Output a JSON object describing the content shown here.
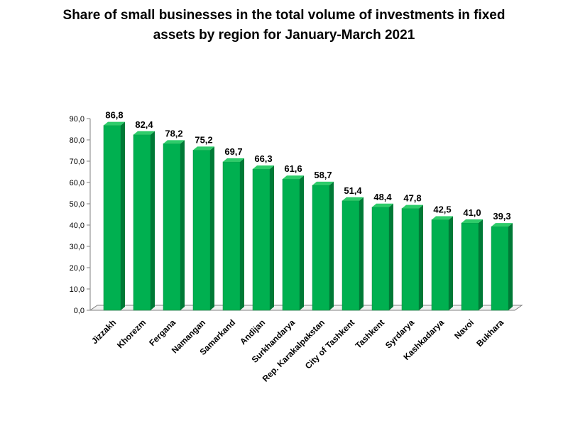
{
  "chart_data": {
    "type": "bar",
    "title_lines": [
      "Share of small businesses in the total volume of investments in fixed",
      "assets by region for January-March 2021"
    ],
    "categories": [
      "Jizzakh",
      "Khorezm",
      "Fergana",
      "Namangan",
      "Samarkand",
      "Andijan",
      "Surkhandarya",
      "Rep. Karakalpakstan",
      "City of Tashkent",
      "Tashkent",
      "Syrdarya",
      "Kashkadarya",
      "Navoi",
      "Bukhara"
    ],
    "values": [
      86.8,
      82.4,
      78.2,
      75.2,
      69.7,
      66.3,
      61.6,
      58.7,
      51.4,
      48.4,
      47.8,
      42.5,
      41.0,
      39.3
    ],
    "value_labels": [
      "86,8",
      "82,4",
      "78,2",
      "75,2",
      "69,7",
      "66,3",
      "61,6",
      "58,7",
      "51,4",
      "48,4",
      "47,8",
      "42,5",
      "41,0",
      "39,3"
    ],
    "y_ticks": [
      0,
      10,
      20,
      30,
      40,
      50,
      60,
      70,
      80,
      90
    ],
    "y_tick_labels": [
      "0,0",
      "10,0",
      "20,0",
      "30,0",
      "40,0",
      "50,0",
      "60,0",
      "70,0",
      "80,0",
      "90,0"
    ],
    "ylim": [
      0,
      90
    ],
    "xlabel": "",
    "ylabel": "",
    "grid": false,
    "legend": "none",
    "colors": {
      "bar_front": "#00b050",
      "bar_side": "#007a36",
      "bar_top": "#2ecc6a",
      "axis": "#808080"
    }
  }
}
